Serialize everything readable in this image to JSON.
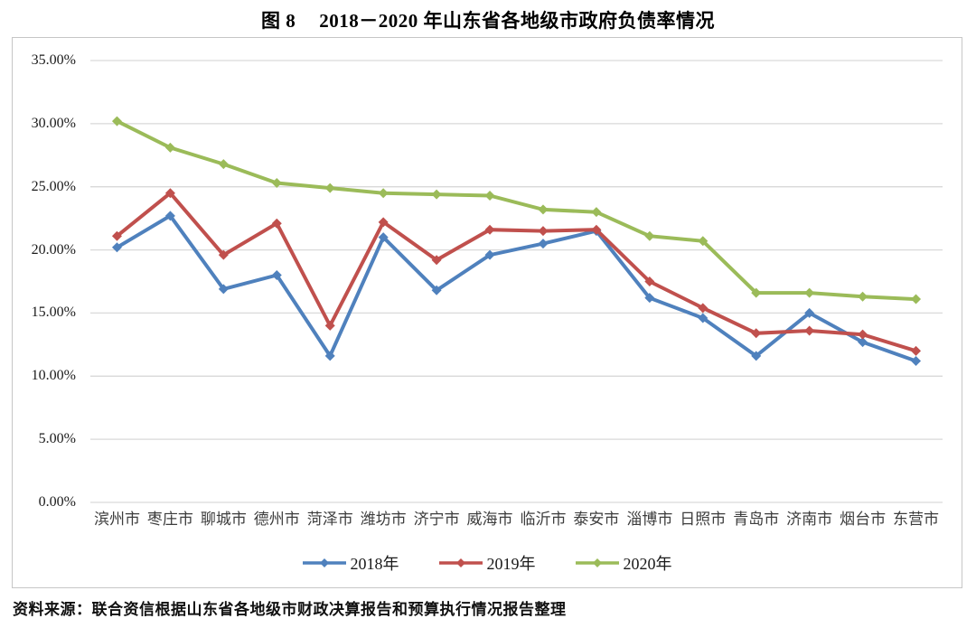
{
  "title": {
    "prefix": "图 8",
    "text": "2018－2020 年山东省各地级市政府负债率情况"
  },
  "source": "资料来源：联合资信根据山东省各地级市财政决算报告和预算执行情况报告整理",
  "chart_data": {
    "type": "line",
    "title": "图 8 2018－2020 年山东省各地级市政府负债率情况",
    "xlabel": "",
    "ylabel": "",
    "ylim": [
      0,
      35
    ],
    "ytick_step": 5,
    "ytick_labels": [
      "0.00%",
      "5.00%",
      "10.00%",
      "15.00%",
      "20.00%",
      "25.00%",
      "30.00%",
      "35.00%"
    ],
    "grid": true,
    "legend_position": "bottom",
    "marker": "diamond",
    "gridline_color": "#d9d9d9",
    "categories": [
      "滨州市",
      "枣庄市",
      "聊城市",
      "德州市",
      "菏泽市",
      "潍坊市",
      "济宁市",
      "威海市",
      "临沂市",
      "泰安市",
      "淄博市",
      "日照市",
      "青岛市",
      "济南市",
      "烟台市",
      "东营市"
    ],
    "series": [
      {
        "name": "2018年",
        "color": "#4F81BD",
        "values": [
          20.2,
          22.7,
          16.9,
          18.0,
          11.6,
          21.0,
          16.8,
          19.6,
          20.5,
          21.5,
          16.2,
          14.6,
          11.6,
          15.0,
          12.7,
          11.2
        ]
      },
      {
        "name": "2019年",
        "color": "#C0504D",
        "values": [
          21.1,
          24.5,
          19.6,
          22.1,
          14.0,
          22.2,
          19.2,
          21.6,
          21.5,
          21.6,
          17.5,
          15.4,
          13.4,
          13.6,
          13.3,
          12.0
        ]
      },
      {
        "name": "2020年",
        "color": "#9BBB59",
        "values": [
          30.2,
          28.1,
          26.8,
          25.3,
          24.9,
          24.5,
          24.4,
          24.3,
          23.2,
          23.0,
          21.1,
          20.7,
          16.6,
          16.6,
          16.3,
          16.1
        ]
      }
    ]
  }
}
